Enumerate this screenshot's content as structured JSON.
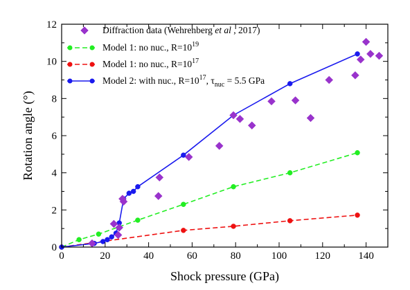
{
  "chart_data": {
    "type": "scatter",
    "xlabel": "Shock pressure (GPa)",
    "ylabel": "Rotation angle (°)",
    "xlim": [
      0,
      150
    ],
    "ylim": [
      0,
      12
    ],
    "x_ticks": [
      0,
      20,
      40,
      60,
      80,
      100,
      120,
      140
    ],
    "y_ticks": [
      0,
      2,
      4,
      6,
      8,
      10,
      12
    ],
    "grid": false,
    "legend_position": "top-left",
    "series": [
      {
        "name": "Diffraction data (Wehrenberg et al , 2017)",
        "legend_parts": [
          "Diffraction data (Wehrenberg ",
          "et al",
          " , 2017)"
        ],
        "style": "markers",
        "marker": "diamond",
        "color": "#9933cc",
        "points": [
          [
            14,
            0.2
          ],
          [
            24,
            1.25
          ],
          [
            26,
            0.65
          ],
          [
            26.5,
            1.05
          ],
          [
            28,
            2.6
          ],
          [
            28.5,
            2.45
          ],
          [
            44.5,
            2.75
          ],
          [
            45,
            3.75
          ],
          [
            58.5,
            4.85
          ],
          [
            72.5,
            5.45
          ],
          [
            79,
            7.1
          ],
          [
            82,
            6.9
          ],
          [
            87.5,
            6.55
          ],
          [
            96.5,
            7.85
          ],
          [
            107.5,
            7.9
          ],
          [
            114.5,
            6.95
          ],
          [
            123,
            9.0
          ],
          [
            135,
            9.25
          ],
          [
            137.5,
            10.1
          ],
          [
            140,
            11.05
          ],
          [
            142,
            10.4
          ],
          [
            146,
            10.3
          ]
        ]
      },
      {
        "name": "Model 1: no nuc., R=10^19",
        "legend_parts": [
          "Model 1: no nuc., R=10",
          "19",
          ""
        ],
        "style": "dashed-line-markers",
        "marker": "circle",
        "color": "#22ee22",
        "points": [
          [
            0,
            0
          ],
          [
            8,
            0.4
          ],
          [
            17,
            0.7
          ],
          [
            35,
            1.45
          ],
          [
            56,
            2.3
          ],
          [
            79,
            3.25
          ],
          [
            105,
            4.0
          ],
          [
            136,
            5.08
          ]
        ]
      },
      {
        "name": "Model 1: no nuc., R=10^17",
        "legend_parts": [
          "Model 1: no nuc., R=10",
          "17",
          ""
        ],
        "style": "dashed-line-markers",
        "marker": "circle",
        "color": "#ee1111",
        "points": [
          [
            0,
            0
          ],
          [
            56,
            0.9
          ],
          [
            79,
            1.12
          ],
          [
            105,
            1.42
          ],
          [
            136,
            1.72
          ]
        ]
      },
      {
        "name": "Model 2: with nuc., R=10^17, τnuc = 5.5 GPa",
        "legend_parts": [
          "Model 2: with nuc., R=10",
          "17",
          ", τ",
          "nuc",
          " = 5.5 GPa"
        ],
        "style": "solid-line-markers",
        "marker": "circle",
        "color": "#1a1aee",
        "points": [
          [
            0,
            0
          ],
          [
            15,
            0.2
          ],
          [
            19,
            0.3
          ],
          [
            21,
            0.4
          ],
          [
            23,
            0.55
          ],
          [
            25,
            0.75
          ],
          [
            26.5,
            1.3
          ],
          [
            28.5,
            2.6
          ],
          [
            31,
            2.9
          ],
          [
            33,
            3.0
          ],
          [
            35,
            3.25
          ],
          [
            56,
            4.95
          ],
          [
            79,
            7.1
          ],
          [
            105,
            8.8
          ],
          [
            136,
            10.4
          ]
        ]
      }
    ]
  }
}
